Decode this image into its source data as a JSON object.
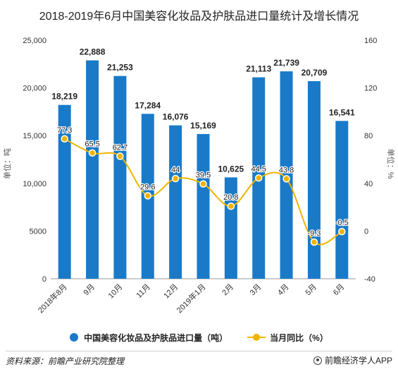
{
  "chart_data": {
    "type": "bar+line",
    "title": "2018-2019年6月中国美容化妆品及护肤品进口量统计及增长情况",
    "categories": [
      "2018年8月",
      "9月",
      "10月",
      "11月",
      "12月",
      "2019年1月",
      "2月",
      "3月",
      "4月",
      "5月",
      "6月"
    ],
    "series": [
      {
        "name": "中国美容化妆品及护肤品进口量（吨）",
        "type": "bar",
        "axis": "left",
        "values": [
          18219,
          22888,
          21253,
          17284,
          16076,
          15169,
          10625,
          21113,
          21739,
          20709,
          16541
        ],
        "labels": [
          "18,219",
          "22,888",
          "21,253",
          "17,284",
          "16,076",
          "15,169",
          "10,625",
          "21,113",
          "21,739",
          "20,709",
          "16,541"
        ],
        "color": "#1a7ac8"
      },
      {
        "name": "当月同比（%）",
        "type": "line",
        "axis": "right",
        "values": [
          77.3,
          65.5,
          62.7,
          29.6,
          44,
          39.5,
          20.8,
          44.5,
          43.8,
          -9.3,
          -0.5
        ],
        "labels": [
          "77.3",
          "65.5",
          "62.7",
          "29.6",
          "44",
          "39.5",
          "20.8",
          "44.5",
          "43.8",
          "-9.3",
          "-0.5"
        ],
        "color": "#f0b400"
      }
    ],
    "y_left": {
      "label": "单位：吨",
      "ylim": [
        0,
        25000
      ],
      "ticks": [
        0,
        5000,
        10000,
        15000,
        20000,
        25000
      ],
      "tick_labels": [
        "0",
        "5000",
        "10,000",
        "15,000",
        "20,000",
        "25,000"
      ]
    },
    "y_right": {
      "label": "单位：%",
      "ylim": [
        -40,
        160
      ],
      "ticks": [
        -40,
        0,
        40,
        80,
        120,
        160
      ],
      "tick_labels": [
        "-40",
        "0",
        "40",
        "80",
        "120",
        "160"
      ]
    },
    "grid": false,
    "legend": "bottom"
  },
  "footer": {
    "source": "资料来源：前瞻产业研究院整理",
    "brand": "前瞻经济学人APP"
  }
}
